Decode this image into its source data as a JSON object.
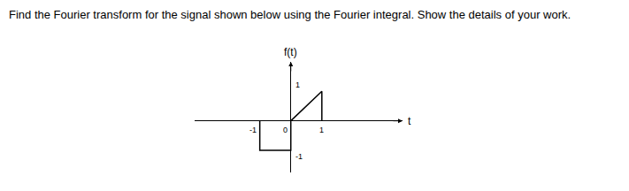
{
  "question": "Find the Fourier transform for the signal shown below using the Fourier integral. Show the details of your work.",
  "chart_data": {
    "type": "line",
    "xlabel": "t",
    "ylabel": "f(t)",
    "x": [
      -1,
      -1,
      0,
      0,
      1,
      1
    ],
    "values": [
      0,
      -1,
      -1,
      0,
      1,
      0
    ],
    "color": "#000000",
    "xlim": [
      -3.1,
      3.6
    ],
    "ylim": [
      -1.75,
      2
    ],
    "xticks": [
      -1,
      0,
      1
    ],
    "yticks": [
      -1,
      1
    ],
    "grid": false
  }
}
